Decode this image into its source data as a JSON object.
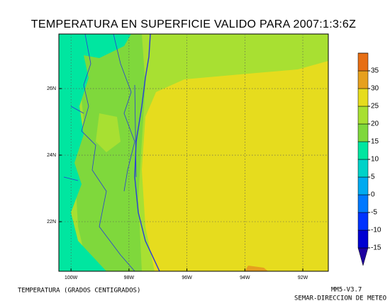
{
  "title": "TEMPERATURA EN SUPERFICIE VALIDO PARA 2007:1:3:6Z",
  "map": {
    "lonlim": [
      -100.42,
      -91.12
    ],
    "latlim": [
      20.51,
      27.64
    ],
    "lon_ticks": [
      {
        "value": -100,
        "label": "100W"
      },
      {
        "value": -98,
        "label": "98W"
      },
      {
        "value": -96,
        "label": "96W"
      },
      {
        "value": -94,
        "label": "94W"
      },
      {
        "value": -92,
        "label": "92W"
      }
    ],
    "lat_ticks": [
      {
        "value": 22,
        "label": "22N"
      },
      {
        "value": 24,
        "label": "24N"
      },
      {
        "value": 26,
        "label": "26N"
      }
    ]
  },
  "colorbar": {
    "lim": [
      -20,
      40
    ],
    "ticks": [
      -15,
      -10,
      -5,
      0,
      5,
      10,
      15,
      20,
      25,
      30,
      35
    ],
    "colors": [
      "#1e00a0",
      "#0000d2",
      "#0032ff",
      "#0078ff",
      "#00aaf0",
      "#00d2c8",
      "#00e6a0",
      "#7fd83c",
      "#a8e032",
      "#e6dc1e",
      "#e6a01e",
      "#e66e14",
      "#e61e1e"
    ]
  },
  "footer": {
    "left": "TEMPERATURA (GRADOS CENTIGRADOS)",
    "right_top": "MM5-V3.7",
    "right_bottom": "SEMAR-DIRECCION DE METEO"
  }
}
